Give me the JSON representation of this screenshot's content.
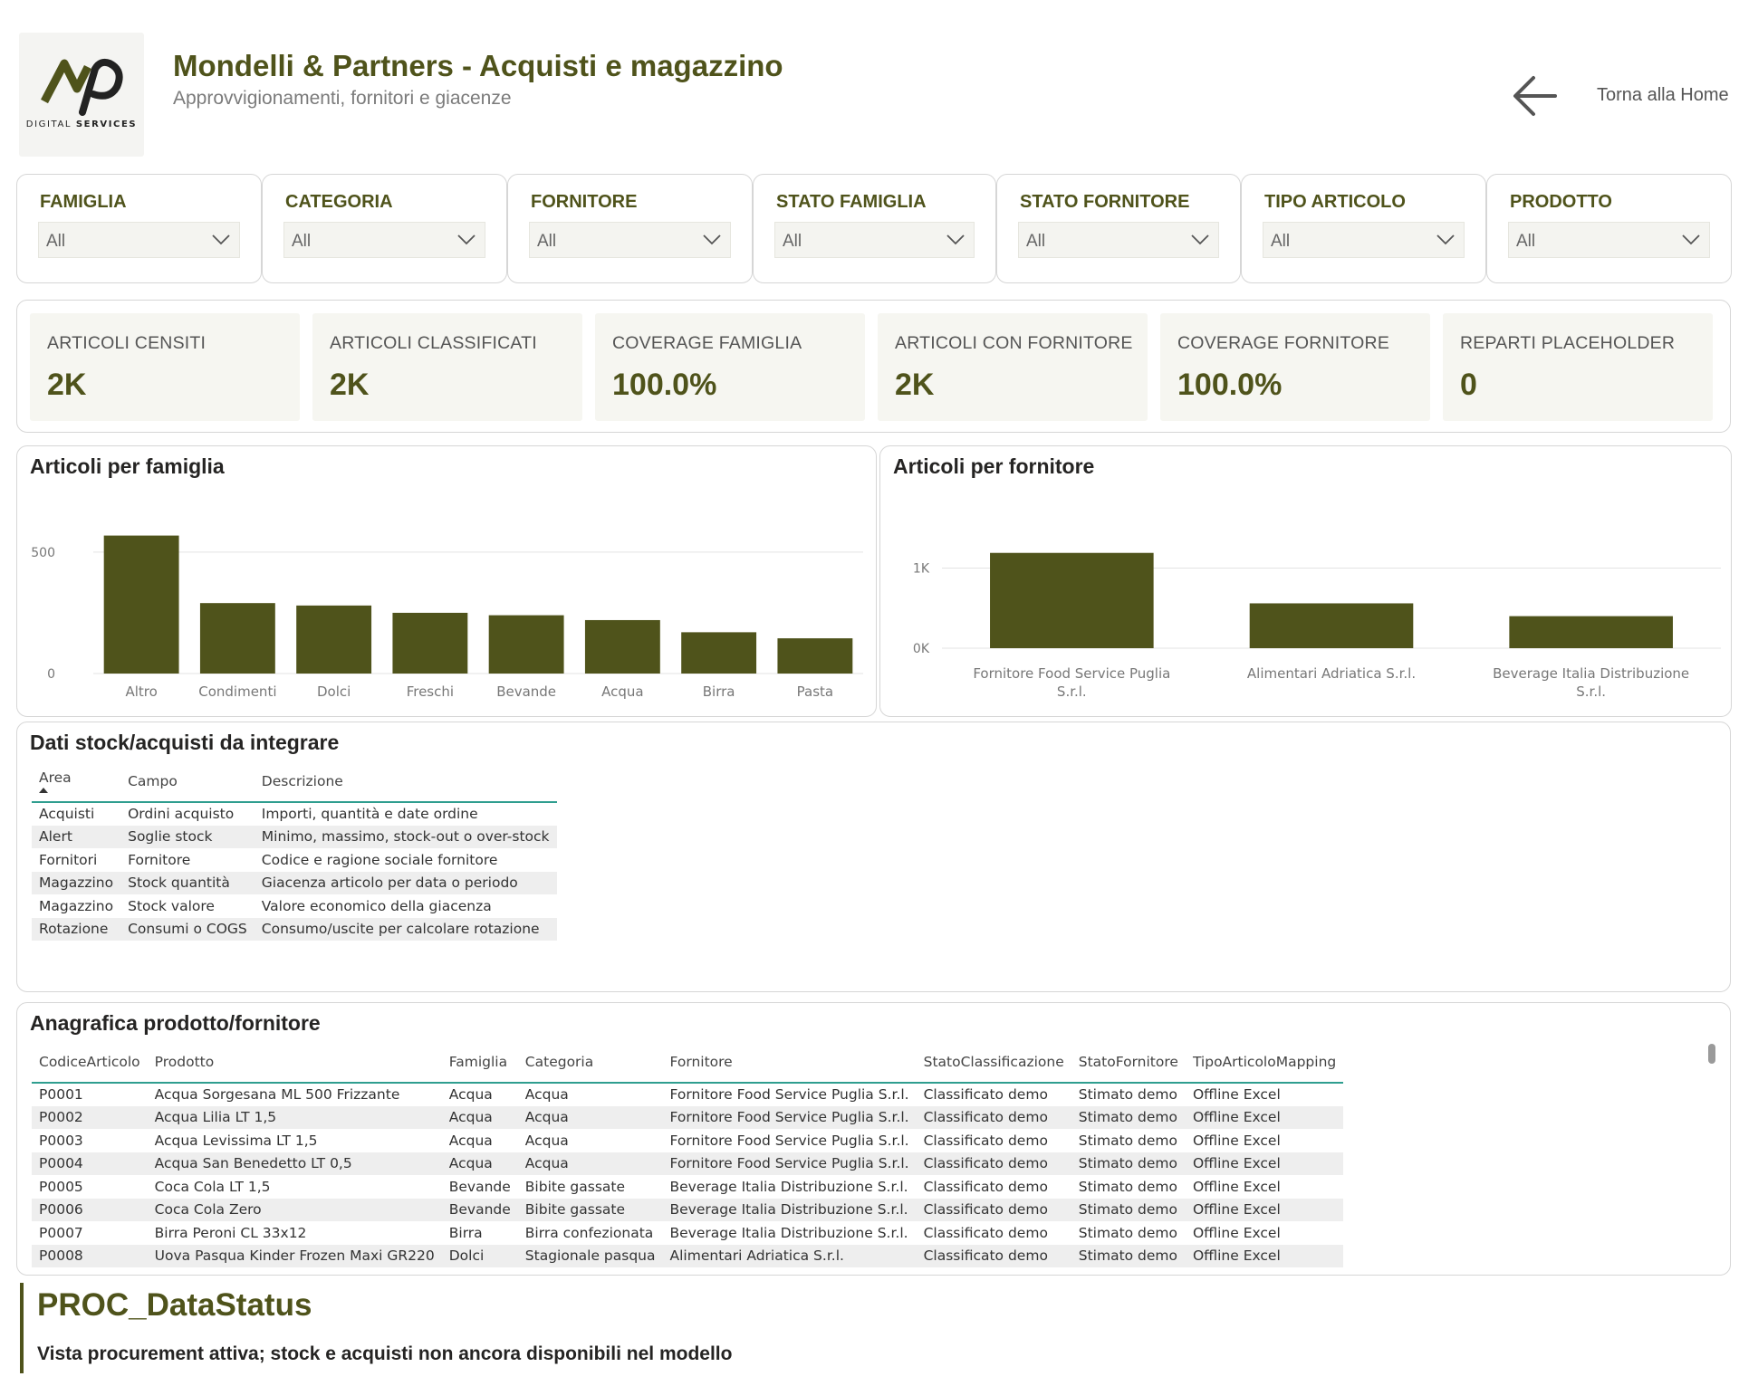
{
  "header": {
    "logo_text_light": "DIGITAL",
    "logo_text_bold": "SERVICES",
    "title": "Mondelli & Partners - Acquisti e magazzino",
    "subtitle": "Approvvigionamenti, fornitori e giacenze",
    "home_link": "Torna alla Home",
    "brand_color": "#4f531b"
  },
  "slicers": [
    {
      "label": "FAMIGLIA",
      "value": "All"
    },
    {
      "label": "CATEGORIA",
      "value": "All"
    },
    {
      "label": "FORNITORE",
      "value": "All"
    },
    {
      "label": "STATO FAMIGLIA",
      "value": "All"
    },
    {
      "label": "STATO FORNITORE",
      "value": "All"
    },
    {
      "label": "TIPO ARTICOLO",
      "value": "All"
    },
    {
      "label": "PRODOTTO",
      "value": "All"
    }
  ],
  "kpis": [
    {
      "label": "ARTICOLI CENSITI",
      "value": "2K"
    },
    {
      "label": "ARTICOLI CLASSIFICATI",
      "value": "2K"
    },
    {
      "label": "COVERAGE FAMIGLIA",
      "value": "100.0%"
    },
    {
      "label": "ARTICOLI CON FORNITORE",
      "value": "2K"
    },
    {
      "label": "COVERAGE FORNITORE",
      "value": "100.0%"
    },
    {
      "label": "REPARTI PLACEHOLDER",
      "value": "0"
    }
  ],
  "charts": {
    "famiglia_title": "Articoli per famiglia",
    "fornitore_title": "Articoli per fornitore"
  },
  "chart_data": [
    {
      "type": "bar",
      "title": "Articoli per famiglia",
      "categories": [
        "Altro",
        "Condimenti",
        "Dolci",
        "Freschi",
        "Bevande",
        "Acqua",
        "Birra",
        "Pasta"
      ],
      "values": [
        568,
        290,
        280,
        250,
        240,
        220,
        170,
        145
      ],
      "yticks": [
        "0",
        "500"
      ],
      "ytick_values": [
        0,
        500
      ],
      "ylim": [
        0,
        600
      ],
      "grid": true,
      "bar_color": "#4f531b"
    },
    {
      "type": "bar",
      "title": "Articoli per fornitore",
      "categories": [
        "Fornitore Food Service Puglia S.r.l.",
        "Alimentari Adriatica S.r.l.",
        "Beverage Italia Distribuzione S.r.l."
      ],
      "category_lines": [
        [
          "Fornitore Food Service Puglia",
          "S.r.l."
        ],
        [
          "Alimentari Adriatica S.r.l."
        ],
        [
          "Beverage Italia Distribuzione",
          "S.r.l."
        ]
      ],
      "values": [
        1190,
        560,
        400
      ],
      "yticks": [
        "0K",
        "1K"
      ],
      "ytick_values": [
        0,
        1000
      ],
      "ylim": [
        0,
        1300
      ],
      "grid": true,
      "bar_color": "#4f531b"
    }
  ],
  "stock_table": {
    "title": "Dati stock/acquisti da integrare",
    "columns": [
      "Area",
      "Campo",
      "Descrizione"
    ],
    "rows": [
      [
        "Acquisti",
        "Ordini acquisto",
        "Importi, quantità e date ordine"
      ],
      [
        "Alert",
        "Soglie stock",
        "Minimo, massimo, stock-out o over-stock"
      ],
      [
        "Fornitori",
        "Fornitore",
        "Codice e ragione sociale fornitore"
      ],
      [
        "Magazzino",
        "Stock quantità",
        "Giacenza articolo per data o periodo"
      ],
      [
        "Magazzino",
        "Stock valore",
        "Valore economico della giacenza"
      ],
      [
        "Rotazione",
        "Consumi o COGS",
        "Consumo/uscite per calcolare rotazione"
      ]
    ]
  },
  "product_table": {
    "title": "Anagrafica prodotto/fornitore",
    "columns": [
      "CodiceArticolo",
      "Prodotto",
      "Famiglia",
      "Categoria",
      "Fornitore",
      "StatoClassificazione",
      "StatoFornitore",
      "TipoArticoloMapping"
    ],
    "rows": [
      [
        "P0001",
        "Acqua Sorgesana ML 500 Frizzante",
        "Acqua",
        "Acqua",
        "Fornitore Food Service Puglia S.r.l.",
        "Classificato demo",
        "Stimato demo",
        "Offline Excel"
      ],
      [
        "P0002",
        "Acqua Lilia LT 1,5",
        "Acqua",
        "Acqua",
        "Fornitore Food Service Puglia S.r.l.",
        "Classificato demo",
        "Stimato demo",
        "Offline Excel"
      ],
      [
        "P0003",
        "Acqua Levissima LT 1,5",
        "Acqua",
        "Acqua",
        "Fornitore Food Service Puglia S.r.l.",
        "Classificato demo",
        "Stimato demo",
        "Offline Excel"
      ],
      [
        "P0004",
        "Acqua San Benedetto LT 0,5",
        "Acqua",
        "Acqua",
        "Fornitore Food Service Puglia S.r.l.",
        "Classificato demo",
        "Stimato demo",
        "Offline Excel"
      ],
      [
        "P0005",
        "Coca Cola LT 1,5",
        "Bevande",
        "Bibite gassate",
        "Beverage Italia Distribuzione S.r.l.",
        "Classificato demo",
        "Stimato demo",
        "Offline Excel"
      ],
      [
        "P0006",
        "Coca Cola Zero",
        "Bevande",
        "Bibite gassate",
        "Beverage Italia Distribuzione S.r.l.",
        "Classificato demo",
        "Stimato demo",
        "Offline Excel"
      ],
      [
        "P0007",
        "Birra Peroni CL 33x12",
        "Birra",
        "Birra confezionata",
        "Beverage Italia Distribuzione S.r.l.",
        "Classificato demo",
        "Stimato demo",
        "Offline Excel"
      ],
      [
        "P0008",
        "Uova Pasqua Kinder Frozen Maxi GR220",
        "Dolci",
        "Stagionale pasqua",
        "Alimentari Adriatica S.r.l.",
        "Classificato demo",
        "Stimato demo",
        "Offline Excel"
      ]
    ]
  },
  "footer": {
    "title": "PROC_DataStatus",
    "subtitle": "Vista procurement attiva; stock e acquisti non ancora disponibili nel modello"
  }
}
